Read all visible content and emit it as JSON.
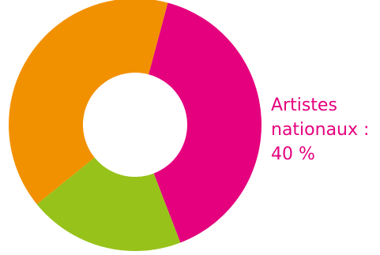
{
  "chart_data": {
    "type": "pie",
    "title": "",
    "donut": true,
    "slices": [
      {
        "label": "Artistes nationaux : 40 %",
        "value": 40,
        "color": "#e5007e"
      },
      {
        "label": "",
        "value": 20,
        "color": "#97c21a"
      },
      {
        "label": "",
        "value": 40,
        "color": "#f29100"
      }
    ],
    "labels": [
      {
        "slice": 0,
        "lines": [
          "Artistes",
          "nationaux :",
          "40 %"
        ]
      }
    ]
  }
}
